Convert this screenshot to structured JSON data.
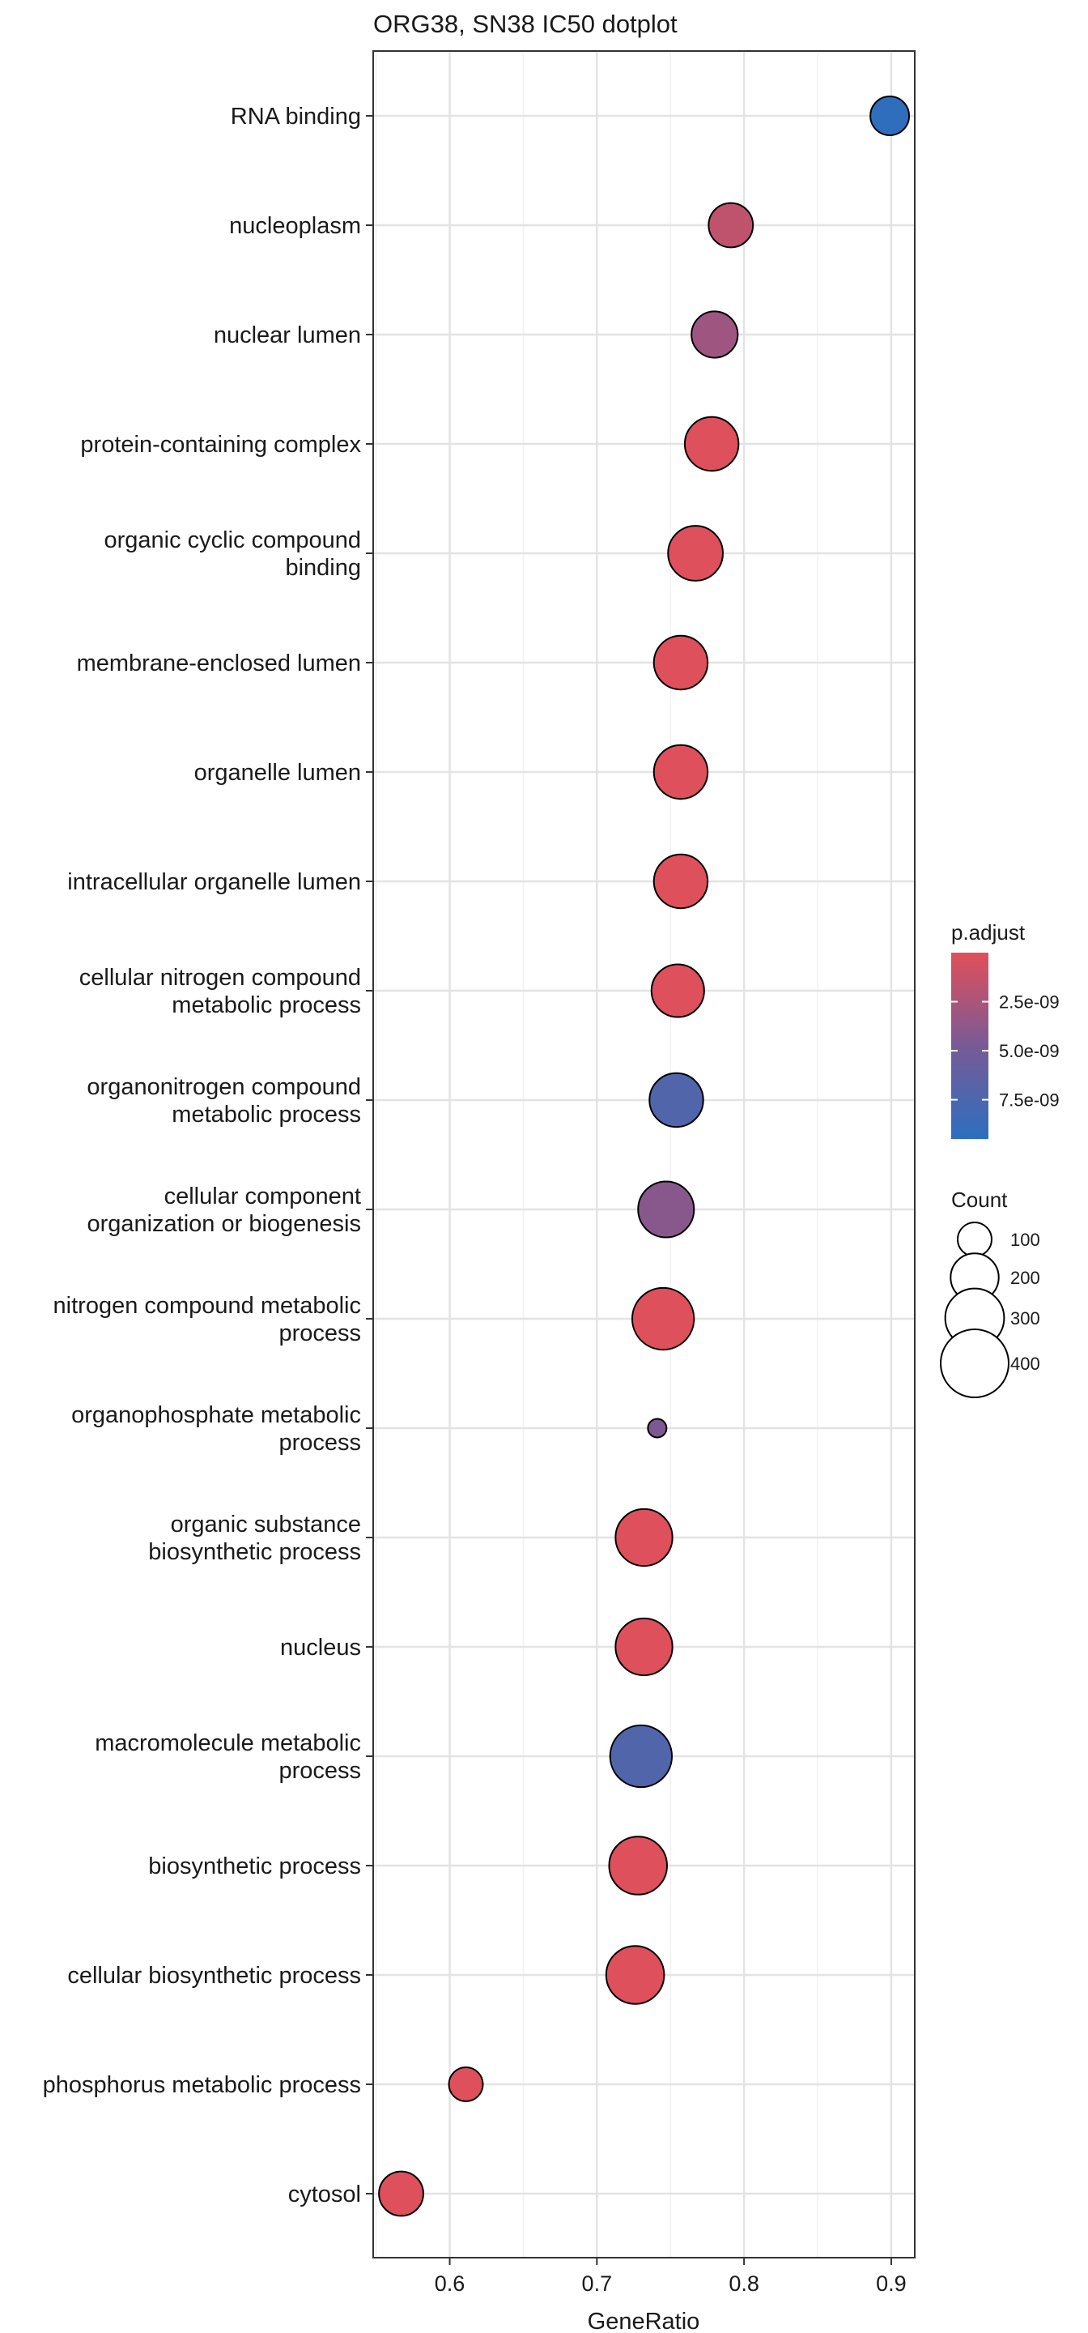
{
  "chart_data": {
    "type": "scatter",
    "title": "ORG38, SN38 IC50 dotplot",
    "xlabel": "GeneRatio",
    "ylabel": "",
    "xlim": [
      0.548,
      0.916
    ],
    "xticks": [
      "0.6",
      "0.7",
      "0.8",
      "0.9"
    ],
    "grid": true,
    "terms": [
      {
        "label": [
          "RNA binding"
        ],
        "gene_ratio": 0.899,
        "count": 130,
        "p_adjust": 9.3e-09
      },
      {
        "label": [
          "nucleoplasm"
        ],
        "gene_ratio": 0.791,
        "count": 170,
        "p_adjust": 1.5e-09
      },
      {
        "label": [
          "nuclear lumen"
        ],
        "gene_ratio": 0.78,
        "count": 185,
        "p_adjust": 3e-09
      },
      {
        "label": [
          "protein-containing complex"
        ],
        "gene_ratio": 0.778,
        "count": 250,
        "p_adjust": 1e-10
      },
      {
        "label": [
          "organic cyclic compound",
          "binding"
        ],
        "gene_ratio": 0.767,
        "count": 260,
        "p_adjust": 1e-10
      },
      {
        "label": [
          "membrane-enclosed lumen"
        ],
        "gene_ratio": 0.757,
        "count": 250,
        "p_adjust": 1e-10
      },
      {
        "label": [
          "organelle lumen"
        ],
        "gene_ratio": 0.757,
        "count": 250,
        "p_adjust": 1e-10
      },
      {
        "label": [
          "intracellular organelle lumen"
        ],
        "gene_ratio": 0.757,
        "count": 250,
        "p_adjust": 1e-10
      },
      {
        "label": [
          "cellular nitrogen compound",
          "metabolic process"
        ],
        "gene_ratio": 0.755,
        "count": 240,
        "p_adjust": 1e-10
      },
      {
        "label": [
          "organonitrogen compound",
          "metabolic process"
        ],
        "gene_ratio": 0.754,
        "count": 250,
        "p_adjust": 7.2e-09
      },
      {
        "label": [
          "cellular component",
          "organization or biogenesis"
        ],
        "gene_ratio": 0.747,
        "count": 270,
        "p_adjust": 4e-09
      },
      {
        "label": [
          "nitrogen compound metabolic",
          "process"
        ],
        "gene_ratio": 0.745,
        "count": 330,
        "p_adjust": 1e-10
      },
      {
        "label": [
          "organophosphate metabolic",
          "process"
        ],
        "gene_ratio": 0.741,
        "count": 30,
        "p_adjust": 4.5e-09
      },
      {
        "label": [
          "organic substance",
          "biosynthetic process"
        ],
        "gene_ratio": 0.732,
        "count": 280,
        "p_adjust": 1e-10
      },
      {
        "label": [
          "nucleus"
        ],
        "gene_ratio": 0.732,
        "count": 280,
        "p_adjust": 1e-10
      },
      {
        "label": [
          "macromolecule metabolic",
          "process"
        ],
        "gene_ratio": 0.73,
        "count": 330,
        "p_adjust": 7.2e-09
      },
      {
        "label": [
          "biosynthetic process"
        ],
        "gene_ratio": 0.728,
        "count": 290,
        "p_adjust": 1e-10
      },
      {
        "label": [
          "cellular biosynthetic process"
        ],
        "gene_ratio": 0.726,
        "count": 290,
        "p_adjust": 1e-10
      },
      {
        "label": [
          "phosphorus metabolic process"
        ],
        "gene_ratio": 0.611,
        "count": 100,
        "p_adjust": 1e-10
      },
      {
        "label": [
          "cytosol"
        ],
        "gene_ratio": 0.567,
        "count": 170,
        "p_adjust": 1e-10
      }
    ],
    "color_legend": {
      "title": "p.adjust",
      "range": [
        0,
        9.5e-09
      ],
      "ticks": [
        {
          "value": 2.5e-09,
          "label": "2.5e-09"
        },
        {
          "value": 5e-09,
          "label": "5.0e-09"
        },
        {
          "value": 7.5e-09,
          "label": "7.5e-09"
        }
      ],
      "low_color": "#E0505A",
      "high_color": "#2C6FBF"
    },
    "size_legend": {
      "title": "Count",
      "entries": [
        {
          "value": 100,
          "label": "100"
        },
        {
          "value": 200,
          "label": "200"
        },
        {
          "value": 300,
          "label": "300"
        },
        {
          "value": 400,
          "label": "400"
        }
      ]
    },
    "legend_position": "right"
  }
}
